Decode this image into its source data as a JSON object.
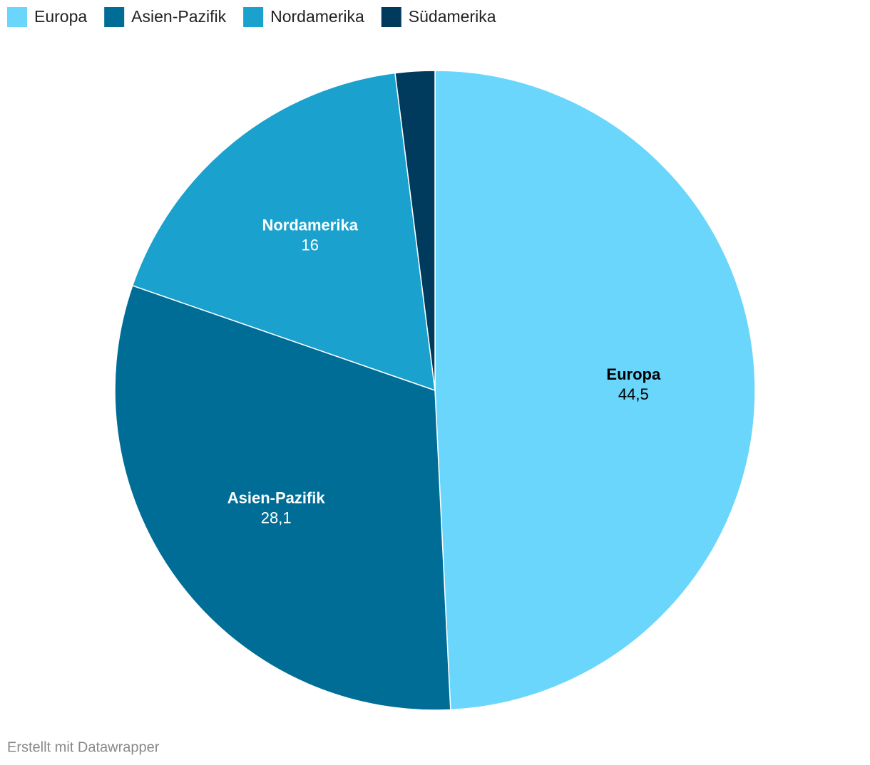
{
  "chart_data": {
    "type": "pie",
    "categories": [
      "Europa",
      "Asien-Pazifik",
      "Nordamerika",
      "Südamerika"
    ],
    "values": [
      44.5,
      28.1,
      16,
      1.8
    ],
    "value_labels": [
      "44,5",
      "28,1",
      "16",
      null
    ],
    "colors": [
      "#6ad6fc",
      "#006d96",
      "#1aa1cd",
      "#003a5c"
    ],
    "legend": "top-left",
    "credit": "Erstellt mit Datawrapper"
  }
}
